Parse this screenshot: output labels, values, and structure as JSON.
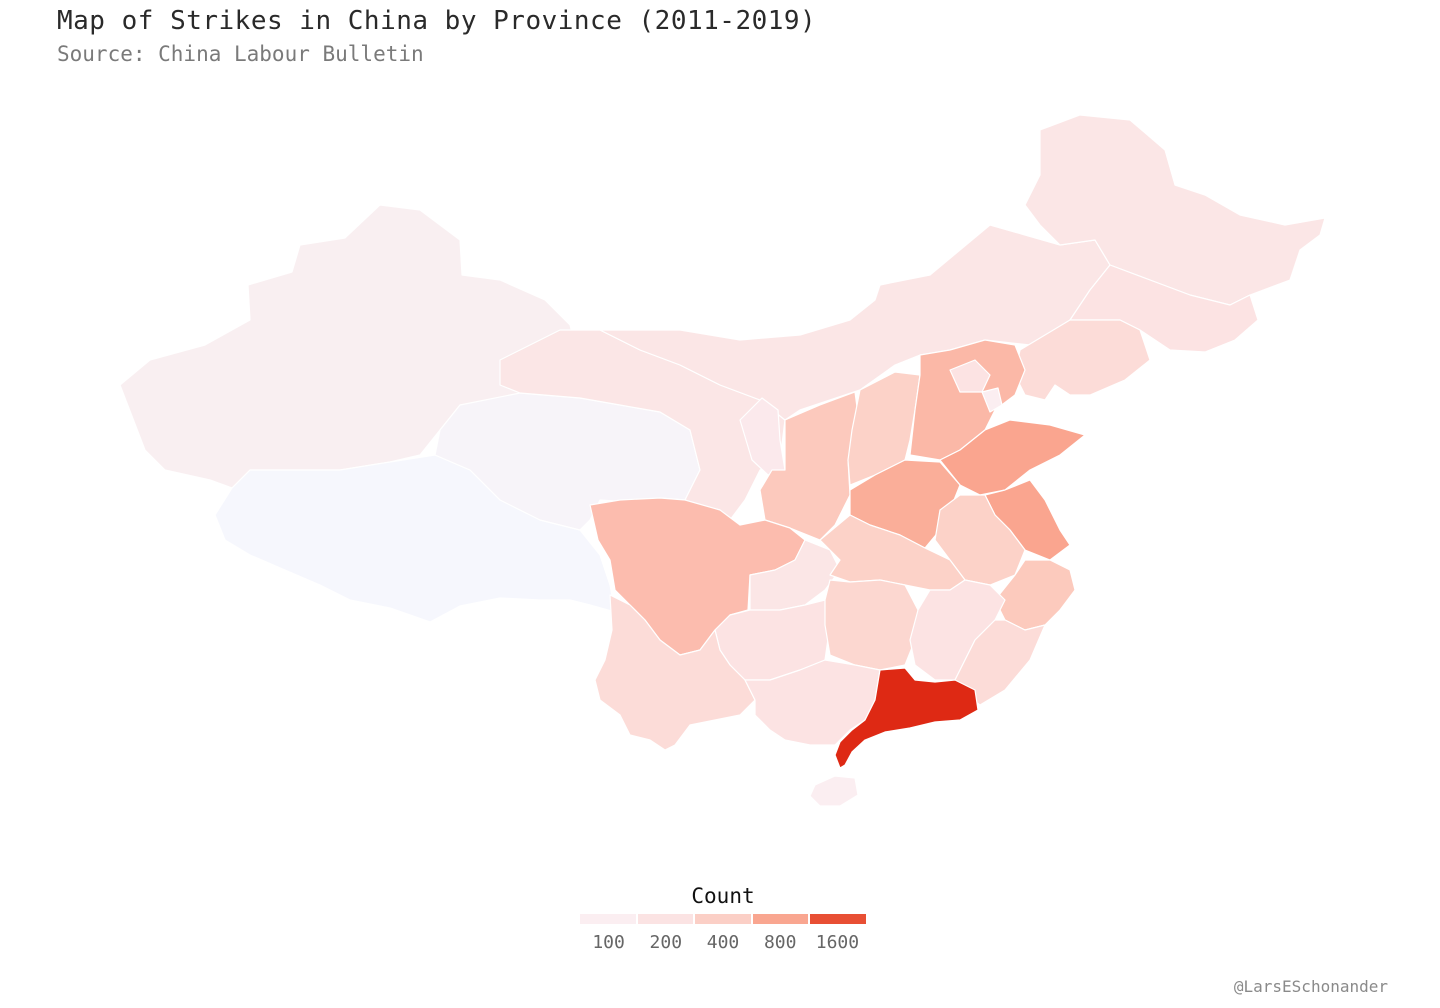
{
  "title": "Map of Strikes in China by Province (2011-2019)",
  "subtitle": "Source: China Labour Bulletin",
  "legend": {
    "title": "Count",
    "bins": [
      {
        "label": "100",
        "color": "#fbeef1"
      },
      {
        "label": "200",
        "color": "#fbe3e3"
      },
      {
        "label": "400",
        "color": "#fbcfc6"
      },
      {
        "label": "800",
        "color": "#f9a690"
      },
      {
        "label": "1600",
        "color": "#e84f34"
      }
    ]
  },
  "colors": {
    "very_low": "#f6f7fd",
    "low": "#f9eff1",
    "medium_low": "#fbe6e6",
    "medium": "#fcdcd8",
    "high": "#fcc2b6",
    "very_high": "#faa58f",
    "max": "#de2914"
  },
  "credit": "@LarsESchonander"
}
